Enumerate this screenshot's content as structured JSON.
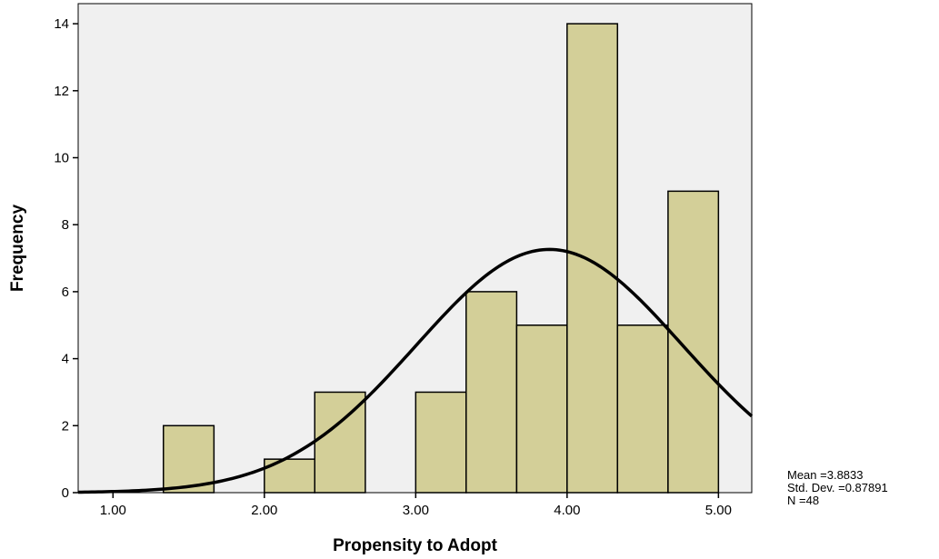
{
  "chart_data": {
    "type": "histogram",
    "title": "",
    "xlabel": "Propensity to Adopt",
    "ylabel": "Frequency",
    "xlim": [
      0.77,
      5.22
    ],
    "ylim": [
      0,
      14.6
    ],
    "x_ticks": [
      1.0,
      2.0,
      3.0,
      4.0,
      5.0
    ],
    "x_tick_labels": [
      "1.00",
      "2.00",
      "3.00",
      "4.00",
      "5.00"
    ],
    "y_ticks": [
      0,
      2,
      4,
      6,
      8,
      10,
      12,
      14
    ],
    "y_tick_labels": [
      "0",
      "2",
      "4",
      "6",
      "8",
      "10",
      "12",
      "14"
    ],
    "bins": [
      {
        "start": 1.333,
        "end": 1.667,
        "count": 2
      },
      {
        "start": 1.667,
        "end": 2.0,
        "count": 0
      },
      {
        "start": 2.0,
        "end": 2.333,
        "count": 1
      },
      {
        "start": 2.333,
        "end": 2.667,
        "count": 3
      },
      {
        "start": 2.667,
        "end": 3.0,
        "count": 0
      },
      {
        "start": 3.0,
        "end": 3.333,
        "count": 3
      },
      {
        "start": 3.333,
        "end": 3.667,
        "count": 6
      },
      {
        "start": 3.667,
        "end": 4.0,
        "count": 5
      },
      {
        "start": 4.0,
        "end": 4.333,
        "count": 14
      },
      {
        "start": 4.333,
        "end": 4.667,
        "count": 5
      },
      {
        "start": 4.667,
        "end": 5.0,
        "count": 9
      }
    ],
    "normal_curve": {
      "mean": 3.8833,
      "std": 0.87891,
      "n": 48,
      "bin_width": 0.3333
    },
    "grid": false,
    "colors": {
      "bar_fill": "#d3cf98",
      "plot_bg": "#f0f0f0",
      "curve": "#000000"
    }
  },
  "stats": {
    "mean_label": "Mean =3.8833",
    "std_label": "Std. Dev. =0.87891",
    "n_label": "N =48"
  }
}
